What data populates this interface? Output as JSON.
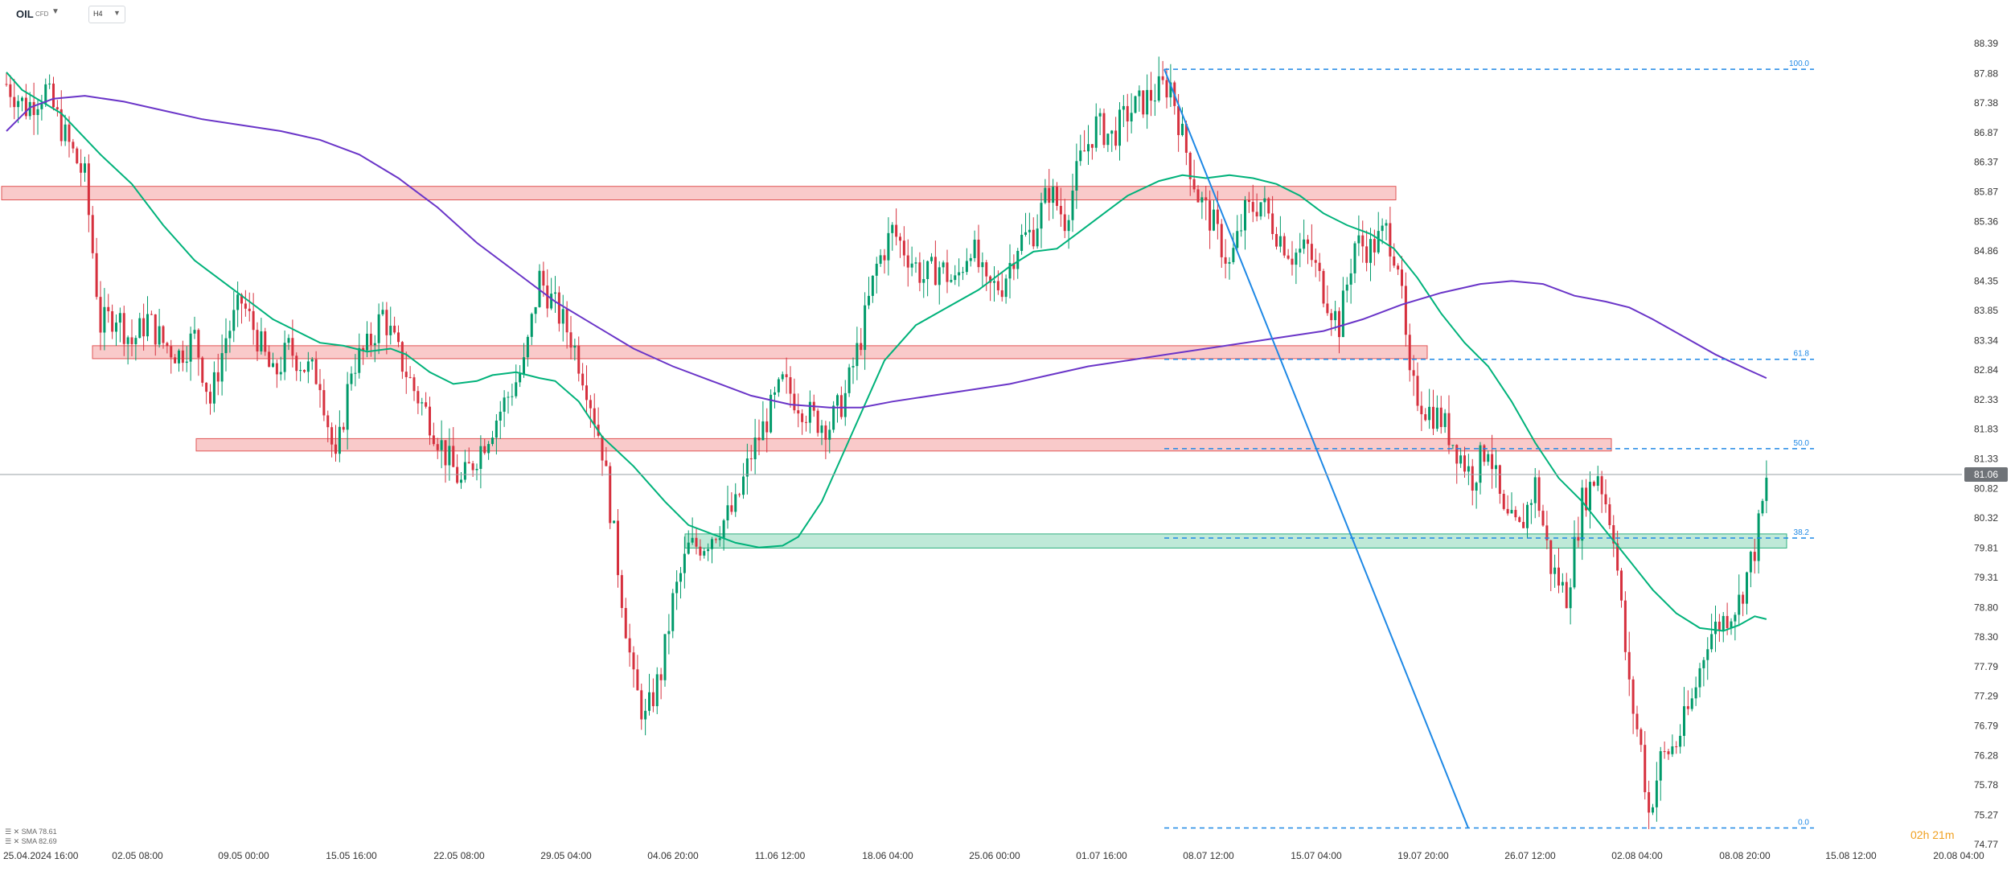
{
  "header": {
    "symbol": "OIL",
    "symbol_type": "CFD",
    "timeframe": "H4",
    "caret_icon": "chevron-down-icon"
  },
  "legend": [
    {
      "label": "SMA 78.61",
      "color": "#00a86b"
    },
    {
      "label": "SMA 82.69",
      "color": "#6a35c8"
    }
  ],
  "timer": "02h 21m",
  "colors": {
    "up": "#009a6a",
    "down": "#d6303e",
    "sma_short": "#00b27a",
    "sma_long": "#6a35c8",
    "fib": "#1e88e5",
    "resistance_fill": "#f9caca",
    "resistance_border": "#e05555",
    "support_fill": "#bfe9d8",
    "support_border": "#2fb07f",
    "price_tag": "#6f7378"
  },
  "chart_data": {
    "type": "candlestick",
    "instrument": "OIL CFD",
    "timeframe": "H4",
    "current_price": "81.06",
    "yaxis_ticks": [
      "88.39",
      "87.88",
      "87.38",
      "86.87",
      "86.37",
      "85.87",
      "85.36",
      "84.86",
      "84.35",
      "83.85",
      "83.34",
      "82.84",
      "82.33",
      "81.83",
      "81.33",
      "80.82",
      "80.32",
      "79.81",
      "79.31",
      "78.80",
      "78.30",
      "77.79",
      "77.29",
      "76.79",
      "76.28",
      "75.78",
      "75.27",
      "74.77"
    ],
    "xaxis_ticks": [
      "25.04.2024  16:00",
      "02.05  08:00",
      "09.05  00:00",
      "15.05  16:00",
      "22.05  08:00",
      "29.05  04:00",
      "04.06  20:00",
      "11.06  12:00",
      "18.06  04:00",
      "25.06  00:00",
      "01.07  16:00",
      "08.07  12:00",
      "15.07  04:00",
      "19.07  20:00",
      "26.07  12:00",
      "02.08  04:00",
      "08.08  20:00",
      "15.08  12:00",
      "20.08  04:00"
    ],
    "ylim": [
      74.77,
      88.39
    ],
    "resistance_zones": [
      {
        "low": 85.73,
        "high": 85.96
      },
      {
        "low": 83.03,
        "high": 83.25
      },
      {
        "low": 81.46,
        "high": 81.67
      }
    ],
    "support_zones": [
      {
        "low": 79.81,
        "high": 80.05
      }
    ],
    "fibonacci": {
      "high": 87.95,
      "low": 75.05,
      "levels": [
        {
          "label": "100.0",
          "price": 87.95
        },
        {
          "label": "61.8",
          "price": 83.02
        },
        {
          "label": "50.0",
          "price": 81.5
        },
        {
          "label": "38.2",
          "price": 79.98
        },
        {
          "label": "0.0",
          "price": 75.05
        }
      ]
    },
    "series": [
      {
        "name": "SMA 78.61",
        "color": "#00b27a",
        "points": [
          [
            0,
            87.9
          ],
          [
            20,
            87.6
          ],
          [
            70,
            87.2
          ],
          [
            120,
            86.5
          ],
          [
            160,
            86.0
          ],
          [
            200,
            85.3
          ],
          [
            240,
            84.7
          ],
          [
            280,
            84.3
          ],
          [
            310,
            84.0
          ],
          [
            340,
            83.7
          ],
          [
            370,
            83.5
          ],
          [
            400,
            83.3
          ],
          [
            430,
            83.25
          ],
          [
            460,
            83.15
          ],
          [
            490,
            83.2
          ],
          [
            510,
            83.1
          ],
          [
            540,
            82.8
          ],
          [
            570,
            82.6
          ],
          [
            600,
            82.65
          ],
          [
            620,
            82.75
          ],
          [
            650,
            82.8
          ],
          [
            680,
            82.7
          ],
          [
            700,
            82.65
          ],
          [
            730,
            82.3
          ],
          [
            760,
            81.7
          ],
          [
            800,
            81.2
          ],
          [
            840,
            80.6
          ],
          [
            870,
            80.2
          ],
          [
            900,
            80.05
          ],
          [
            930,
            79.9
          ],
          [
            960,
            79.82
          ],
          [
            990,
            79.85
          ],
          [
            1010,
            80.0
          ],
          [
            1040,
            80.6
          ],
          [
            1080,
            81.8
          ],
          [
            1120,
            83.0
          ],
          [
            1160,
            83.6
          ],
          [
            1200,
            83.9
          ],
          [
            1240,
            84.2
          ],
          [
            1280,
            84.6
          ],
          [
            1310,
            84.85
          ],
          [
            1340,
            84.9
          ],
          [
            1370,
            85.2
          ],
          [
            1400,
            85.5
          ],
          [
            1430,
            85.8
          ],
          [
            1470,
            86.05
          ],
          [
            1500,
            86.15
          ],
          [
            1530,
            86.1
          ],
          [
            1560,
            86.15
          ],
          [
            1590,
            86.1
          ],
          [
            1620,
            86.0
          ],
          [
            1650,
            85.8
          ],
          [
            1680,
            85.5
          ],
          [
            1710,
            85.3
          ],
          [
            1740,
            85.15
          ],
          [
            1770,
            84.9
          ],
          [
            1800,
            84.4
          ],
          [
            1830,
            83.8
          ],
          [
            1860,
            83.3
          ],
          [
            1890,
            82.9
          ],
          [
            1920,
            82.3
          ],
          [
            1950,
            81.6
          ],
          [
            1980,
            81.0
          ],
          [
            2010,
            80.6
          ],
          [
            2040,
            80.1
          ],
          [
            2070,
            79.6
          ],
          [
            2100,
            79.1
          ],
          [
            2130,
            78.7
          ],
          [
            2160,
            78.45
          ],
          [
            2190,
            78.4
          ],
          [
            2210,
            78.5
          ],
          [
            2230,
            78.65
          ],
          [
            2245,
            78.6
          ]
        ]
      },
      {
        "name": "SMA 82.69",
        "color": "#6a35c8",
        "points": [
          [
            0,
            86.9
          ],
          [
            30,
            87.3
          ],
          [
            60,
            87.45
          ],
          [
            100,
            87.5
          ],
          [
            150,
            87.4
          ],
          [
            200,
            87.25
          ],
          [
            250,
            87.1
          ],
          [
            300,
            87.0
          ],
          [
            350,
            86.9
          ],
          [
            400,
            86.75
          ],
          [
            450,
            86.5
          ],
          [
            500,
            86.1
          ],
          [
            550,
            85.6
          ],
          [
            600,
            85.0
          ],
          [
            650,
            84.5
          ],
          [
            700,
            84.0
          ],
          [
            750,
            83.6
          ],
          [
            800,
            83.2
          ],
          [
            850,
            82.9
          ],
          [
            900,
            82.65
          ],
          [
            950,
            82.4
          ],
          [
            1000,
            82.25
          ],
          [
            1050,
            82.2
          ],
          [
            1090,
            82.2
          ],
          [
            1130,
            82.3
          ],
          [
            1180,
            82.4
          ],
          [
            1230,
            82.5
          ],
          [
            1280,
            82.6
          ],
          [
            1330,
            82.75
          ],
          [
            1380,
            82.9
          ],
          [
            1430,
            83.0
          ],
          [
            1480,
            83.1
          ],
          [
            1530,
            83.2
          ],
          [
            1580,
            83.3
          ],
          [
            1630,
            83.4
          ],
          [
            1680,
            83.5
          ],
          [
            1730,
            83.7
          ],
          [
            1780,
            83.95
          ],
          [
            1830,
            84.15
          ],
          [
            1880,
            84.3
          ],
          [
            1920,
            84.35
          ],
          [
            1960,
            84.3
          ],
          [
            2000,
            84.1
          ],
          [
            2040,
            84.0
          ],
          [
            2070,
            83.9
          ],
          [
            2100,
            83.7
          ],
          [
            2140,
            83.4
          ],
          [
            2180,
            83.1
          ],
          [
            2220,
            82.85
          ],
          [
            2245,
            82.7
          ]
        ]
      }
    ],
    "price_path": [
      [
        0,
        87.7
      ],
      [
        25,
        87.3
      ],
      [
        50,
        87.6
      ],
      [
        75,
        86.8
      ],
      [
        100,
        86.1
      ],
      [
        120,
        83.6
      ],
      [
        140,
        83.8
      ],
      [
        160,
        83.3
      ],
      [
        180,
        83.7
      ],
      [
        200,
        83.3
      ],
      [
        220,
        83.1
      ],
      [
        240,
        83.4
      ],
      [
        260,
        82.3
      ],
      [
        280,
        83.4
      ],
      [
        300,
        84.0
      ],
      [
        320,
        83.4
      ],
      [
        340,
        82.7
      ],
      [
        360,
        83.2
      ],
      [
        380,
        82.9
      ],
      [
        400,
        82.7
      ],
      [
        420,
        81.2
      ],
      [
        440,
        82.9
      ],
      [
        460,
        83.2
      ],
      [
        480,
        83.8
      ],
      [
        500,
        83.1
      ],
      [
        520,
        82.5
      ],
      [
        540,
        82.0
      ],
      [
        560,
        81.4
      ],
      [
        580,
        80.9
      ],
      [
        600,
        81.4
      ],
      [
        620,
        81.9
      ],
      [
        640,
        82.4
      ],
      [
        660,
        82.9
      ],
      [
        680,
        84.4
      ],
      [
        700,
        83.9
      ],
      [
        720,
        83.4
      ],
      [
        740,
        82.6
      ],
      [
        760,
        81.5
      ],
      [
        780,
        79.5
      ],
      [
        800,
        77.5
      ],
      [
        815,
        76.9
      ],
      [
        835,
        77.7
      ],
      [
        850,
        78.9
      ],
      [
        870,
        79.8
      ],
      [
        890,
        79.9
      ],
      [
        910,
        80.2
      ],
      [
        930,
        80.5
      ],
      [
        950,
        81.4
      ],
      [
        970,
        82.0
      ],
      [
        990,
        82.6
      ],
      [
        1010,
        82.3
      ],
      [
        1030,
        82.0
      ],
      [
        1050,
        81.9
      ],
      [
        1070,
        82.4
      ],
      [
        1090,
        83.4
      ],
      [
        1110,
        84.6
      ],
      [
        1130,
        85.2
      ],
      [
        1150,
        84.8
      ],
      [
        1170,
        84.4
      ],
      [
        1190,
        84.6
      ],
      [
        1210,
        84.3
      ],
      [
        1230,
        85.0
      ],
      [
        1250,
        84.2
      ],
      [
        1270,
        84.3
      ],
      [
        1290,
        85.0
      ],
      [
        1310,
        85.2
      ],
      [
        1330,
        85.9
      ],
      [
        1350,
        85.4
      ],
      [
        1370,
        86.4
      ],
      [
        1390,
        87.0
      ],
      [
        1410,
        86.8
      ],
      [
        1430,
        87.2
      ],
      [
        1450,
        87.4
      ],
      [
        1470,
        87.6
      ],
      [
        1485,
        87.7
      ],
      [
        1500,
        86.8
      ],
      [
        1520,
        85.8
      ],
      [
        1540,
        85.3
      ],
      [
        1560,
        84.6
      ],
      [
        1580,
        85.5
      ],
      [
        1600,
        85.7
      ],
      [
        1620,
        85.2
      ],
      [
        1640,
        84.8
      ],
      [
        1660,
        84.9
      ],
      [
        1680,
        84.2
      ],
      [
        1700,
        83.6
      ],
      [
        1720,
        85.0
      ],
      [
        1740,
        84.9
      ],
      [
        1760,
        85.2
      ],
      [
        1775,
        84.7
      ],
      [
        1790,
        82.6
      ],
      [
        1810,
        82.2
      ],
      [
        1830,
        82.0
      ],
      [
        1850,
        81.5
      ],
      [
        1870,
        81.0
      ],
      [
        1890,
        81.6
      ],
      [
        1910,
        80.3
      ],
      [
        1930,
        80.1
      ],
      [
        1950,
        80.9
      ],
      [
        1970,
        79.5
      ],
      [
        1990,
        79.0
      ],
      [
        2010,
        80.6
      ],
      [
        2030,
        81.1
      ],
      [
        2050,
        80.1
      ],
      [
        2070,
        77.4
      ],
      [
        2085,
        76.4
      ],
      [
        2095,
        75.3
      ],
      [
        2110,
        76.2
      ],
      [
        2130,
        76.5
      ],
      [
        2150,
        77.2
      ],
      [
        2170,
        78.3
      ],
      [
        2190,
        78.6
      ],
      [
        2210,
        78.9
      ],
      [
        2230,
        79.8
      ],
      [
        2245,
        80.9
      ]
    ]
  }
}
